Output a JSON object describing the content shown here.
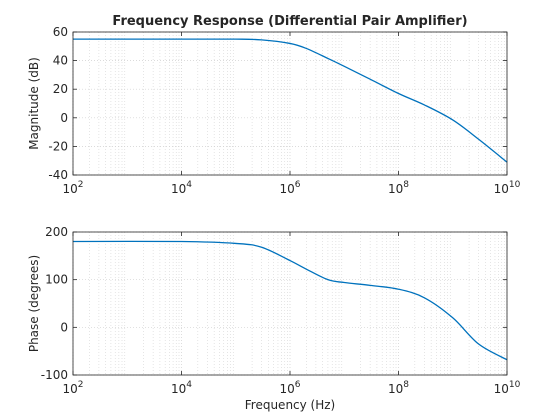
{
  "chart_data": [
    {
      "type": "line",
      "title": "Frequency Response (Differential Pair Amplifier)",
      "xlabel": "",
      "ylabel": "Magnitude (dB)",
      "xscale": "log",
      "xlim": [
        100,
        10000000000
      ],
      "ylim": [
        -40,
        60
      ],
      "yticks": [
        "-40",
        "-20",
        "0",
        "20",
        "40",
        "60"
      ],
      "xticks": [
        {
          "base": "10",
          "exp": "2"
        },
        {
          "base": "10",
          "exp": "4"
        },
        {
          "base": "10",
          "exp": "6"
        },
        {
          "base": "10",
          "exp": "8"
        },
        {
          "base": "10",
          "exp": "10"
        }
      ],
      "grid": true,
      "minor_grid": true,
      "line_color": "#0072bd",
      "series": [
        {
          "x": [
            100,
            1000,
            10000,
            100000,
            300000,
            1000000,
            2000000,
            5000000,
            10000000,
            30000000,
            100000000,
            300000000,
            1000000000,
            3000000000,
            10000000000
          ],
          "y": [
            55,
            55,
            55,
            55,
            54.5,
            52,
            48.5,
            41.5,
            36,
            27,
            17,
            9,
            -1.5,
            -15,
            -31
          ]
        }
      ]
    },
    {
      "type": "line",
      "title": "",
      "xlabel": "Frequency (Hz)",
      "ylabel": "Phase (degrees)",
      "xscale": "log",
      "xlim": [
        100,
        10000000000
      ],
      "ylim": [
        -100,
        200
      ],
      "yticks": [
        "-100",
        "0",
        "100",
        "200"
      ],
      "xticks": [
        {
          "base": "10",
          "exp": "2"
        },
        {
          "base": "10",
          "exp": "4"
        },
        {
          "base": "10",
          "exp": "6"
        },
        {
          "base": "10",
          "exp": "8"
        },
        {
          "base": "10",
          "exp": "10"
        }
      ],
      "grid": true,
      "minor_grid": true,
      "line_color": "#0072bd",
      "series": [
        {
          "x": [
            100,
            10000,
            100000,
            300000,
            1000000,
            2000000,
            5000000,
            10000000,
            30000000,
            100000000,
            300000000,
            1000000000,
            3000000000,
            10000000000
          ],
          "y": [
            180,
            180,
            176,
            168,
            140,
            122,
            100,
            94,
            88,
            80,
            62,
            20,
            -35,
            -68
          ]
        }
      ]
    }
  ]
}
